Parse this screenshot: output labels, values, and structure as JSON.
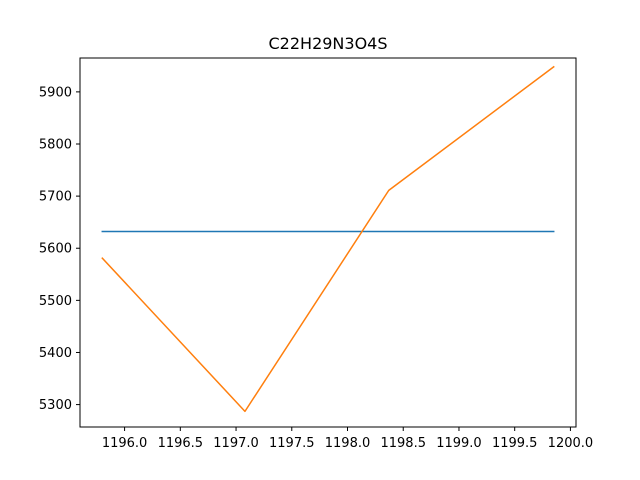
{
  "chart_data": {
    "type": "line",
    "title": "C22H29N3O4S",
    "xlabel": "",
    "ylabel": "",
    "xlim": [
      1195.6,
      1200.05
    ],
    "ylim": [
      5257,
      5965
    ],
    "x_ticks": [
      1196.0,
      1196.5,
      1197.0,
      1197.5,
      1198.0,
      1198.5,
      1199.0,
      1199.5,
      1200.0
    ],
    "x_tick_labels": [
      "1196.0",
      "1196.5",
      "1197.0",
      "1197.5",
      "1198.0",
      "1198.5",
      "1199.0",
      "1199.5",
      "1200.0"
    ],
    "y_ticks": [
      5300,
      5400,
      5500,
      5600,
      5700,
      5800,
      5900
    ],
    "y_tick_labels": [
      "5300",
      "5400",
      "5500",
      "5600",
      "5700",
      "5800",
      "5900"
    ],
    "grid": false,
    "series": [
      {
        "color": "#1f77b4",
        "x": [
          1195.8,
          1199.85
        ],
        "y": [
          5632,
          5632
        ]
      },
      {
        "color": "#ff7f0e",
        "x": [
          1195.8,
          1197.08,
          1198.37,
          1199.85
        ],
        "y": [
          5581,
          5287,
          5711,
          5948
        ]
      }
    ]
  }
}
